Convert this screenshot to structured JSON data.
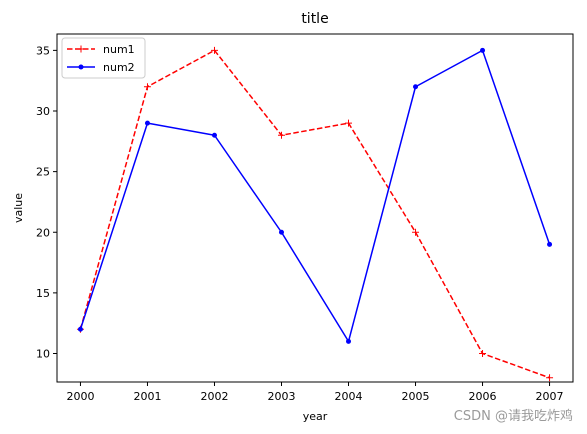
{
  "chart_data": {
    "type": "line",
    "title": "title",
    "xlabel": "year",
    "ylabel": "value",
    "x": [
      2000,
      2001,
      2002,
      2003,
      2004,
      2005,
      2006,
      2007
    ],
    "xlim": [
      1999.65,
      2007.35
    ],
    "ylim": [
      7.65,
      36.35
    ],
    "yticks": [
      10,
      15,
      20,
      25,
      30,
      35
    ],
    "grid": false,
    "legend_position": "upper left",
    "series": [
      {
        "name": "num1",
        "values": [
          12,
          32,
          35,
          28,
          29,
          20,
          10,
          8
        ],
        "color": "#ff0000",
        "line_style": "dashed",
        "marker": "plus"
      },
      {
        "name": "num2",
        "values": [
          12,
          29,
          28,
          20,
          11,
          32,
          35,
          19
        ],
        "color": "#0000ff",
        "line_style": "solid",
        "marker": "point"
      }
    ]
  },
  "watermark": "CSDN @请我吃炸鸡"
}
